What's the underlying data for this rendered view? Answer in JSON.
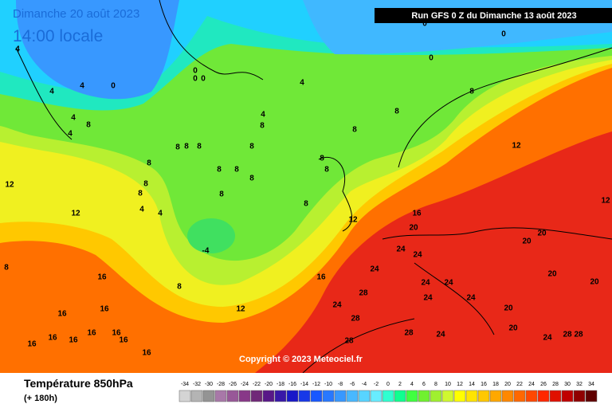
{
  "header": {
    "date": "Dimanche 20 août 2023",
    "time": "14:00 locale",
    "run": "Run GFS 0 Z du Dimanche 13 août 2023"
  },
  "copyright": "Copyright © 2023 Meteociel.fr",
  "footer": {
    "title": "Température 850hPa",
    "lead": "(+ 180h)"
  },
  "legend": {
    "values": [
      -34,
      -32,
      -30,
      -28,
      -26,
      -24,
      -22,
      -20,
      -18,
      -16,
      -14,
      -12,
      -10,
      -8,
      -6,
      -4,
      -2,
      0,
      2,
      4,
      6,
      8,
      10,
      12,
      14,
      16,
      18,
      20,
      22,
      24,
      26,
      28,
      30,
      32,
      34
    ],
    "colors": [
      "#d4d4d4",
      "#b4b4b4",
      "#949494",
      "#a878a8",
      "#985898",
      "#883888",
      "#702878",
      "#581888",
      "#3818a8",
      "#1818c8",
      "#1838e8",
      "#1858ff",
      "#2878ff",
      "#3898ff",
      "#48b8ff",
      "#58d4ff",
      "#68ecff",
      "#30ffd0",
      "#10ff90",
      "#40ff40",
      "#70f030",
      "#a0f030",
      "#d0f830",
      "#ffff00",
      "#ffe400",
      "#ffc800",
      "#ffa800",
      "#ff8800",
      "#ff6800",
      "#ff4800",
      "#ff2800",
      "#e01000",
      "#c00000",
      "#900000",
      "#600000"
    ]
  },
  "map_labels": [
    0,
    0,
    0,
    0,
    0,
    0,
    0,
    4,
    4,
    4,
    4,
    4,
    4,
    4,
    8,
    8,
    8,
    8,
    8,
    8,
    8,
    8,
    8,
    8,
    8,
    8,
    8,
    8,
    8,
    8,
    8,
    8,
    8,
    8,
    8,
    12,
    12,
    12,
    12,
    12,
    12,
    16,
    16,
    16,
    16,
    16,
    16,
    16,
    16,
    16,
    16,
    16,
    16,
    20,
    20,
    20,
    20,
    20,
    20,
    20,
    24,
    24,
    24,
    24,
    24,
    24,
    24,
    24,
    24,
    24,
    28,
    28,
    28,
    28,
    28,
    28,
    4,
    4,
    -4
  ]
}
